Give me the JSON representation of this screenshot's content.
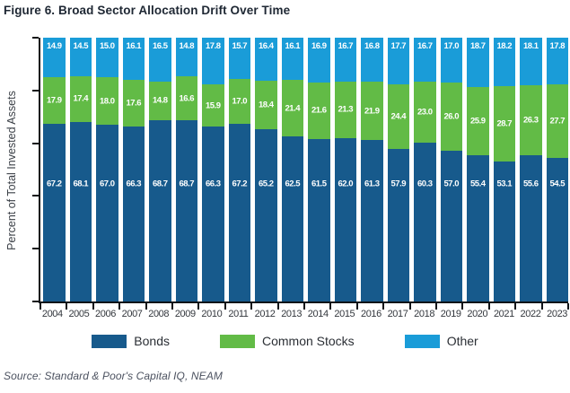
{
  "title": "Figure 6. Broad Sector Allocation Drift Over Time",
  "y_axis_label": "Percent of Total Invested Assets",
  "source": "Source: Standard & Poor's Capital IQ, NEAM",
  "colors": {
    "bonds": "#175A8C",
    "common_stocks": "#62BB46",
    "other": "#1A9CD8",
    "axis": "#101418",
    "title_text": "#1e2733",
    "source_text": "#4c5260"
  },
  "chart_data": {
    "type": "bar",
    "stacked": true,
    "percent_stacked": true,
    "title": "Figure 6. Broad Sector Allocation Drift Over Time",
    "xlabel": "",
    "ylabel": "Percent of Total Invested Assets",
    "ylim": [
      0,
      100
    ],
    "grid": false,
    "legend_position": "bottom",
    "categories": [
      "2004",
      "2005",
      "2006",
      "2007",
      "2008",
      "2009",
      "2010",
      "2011",
      "2012",
      "2013",
      "2014",
      "2015",
      "2016",
      "2017",
      "2018",
      "2019",
      "2020",
      "2021",
      "2022",
      "2023"
    ],
    "series": [
      {
        "name": "Bonds",
        "color": "#175A8C",
        "values": [
          67.2,
          68.1,
          67.0,
          66.3,
          68.7,
          68.7,
          66.3,
          67.2,
          65.2,
          62.5,
          61.5,
          62.0,
          61.3,
          57.9,
          60.3,
          57.0,
          55.4,
          53.1,
          55.6,
          54.5
        ]
      },
      {
        "name": "Common Stocks",
        "color": "#62BB46",
        "values": [
          17.9,
          17.4,
          18.0,
          17.6,
          14.8,
          16.6,
          15.9,
          17.0,
          18.4,
          21.4,
          21.6,
          21.3,
          21.9,
          24.4,
          23.0,
          26.0,
          25.9,
          28.7,
          26.3,
          27.7
        ]
      },
      {
        "name": "Other",
        "color": "#1A9CD8",
        "values": [
          14.9,
          14.5,
          15.0,
          16.1,
          16.5,
          14.8,
          17.8,
          15.7,
          16.4,
          16.1,
          16.9,
          16.7,
          16.8,
          17.7,
          16.7,
          17.0,
          18.7,
          18.2,
          18.1,
          17.8
        ]
      }
    ]
  }
}
